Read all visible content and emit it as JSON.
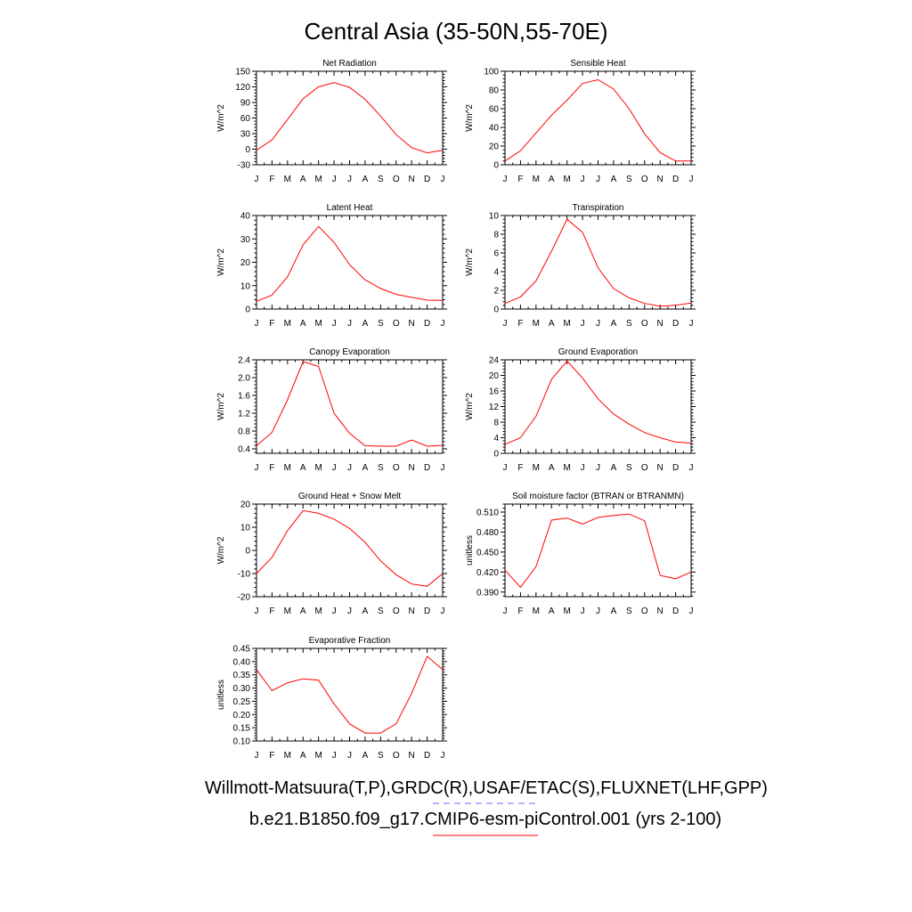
{
  "title": "Central Asia (35-50N,55-70E)",
  "months": [
    "J",
    "F",
    "M",
    "A",
    "M",
    "J",
    "J",
    "A",
    "S",
    "O",
    "N",
    "D",
    "J"
  ],
  "legend": {
    "obs": {
      "label": "Willmott-Matsuura(T,P),GRDC(R),USAF/ETAC(S),FLUXNET(LHF,GPP)",
      "color": "#6666ff",
      "style": "dashed"
    },
    "model": {
      "label": "b.e21.B1850.f09_g17.CMIP6-esm-piControl.001 (yrs 2-100)",
      "color": "#ff0000",
      "style": "solid"
    }
  },
  "chart_data": [
    {
      "type": "line",
      "title": "Net Radiation",
      "ylabel": "W/m^2",
      "ylim": [
        -30,
        150
      ],
      "yticks": [
        "-30",
        "0",
        "30",
        "60",
        "90",
        "120",
        "150"
      ],
      "series": [
        {
          "values": [
            -2,
            18,
            57,
            97,
            120,
            128,
            119,
            96,
            64,
            28,
            3,
            -7,
            -2
          ]
        }
      ]
    },
    {
      "type": "line",
      "title": "Sensible Heat",
      "ylabel": "W/m^2",
      "ylim": [
        0,
        100
      ],
      "yticks": [
        "0",
        "20",
        "40",
        "60",
        "80",
        "100"
      ],
      "series": [
        {
          "values": [
            4,
            15,
            34,
            53,
            69,
            87,
            91,
            81,
            60,
            33,
            13,
            4,
            4
          ]
        }
      ]
    },
    {
      "type": "line",
      "title": "Latent Heat",
      "ylabel": "W/m^2",
      "ylim": [
        0,
        40
      ],
      "yticks": [
        "0",
        "10",
        "20",
        "30",
        "40"
      ],
      "series": [
        {
          "values": [
            3.3,
            6,
            13.8,
            27.5,
            35.3,
            28.5,
            19,
            12.5,
            8.8,
            6.3,
            5,
            3.8,
            3.7
          ]
        }
      ]
    },
    {
      "type": "line",
      "title": "Transpiration",
      "ylabel": "W/m^2",
      "ylim": [
        0,
        10
      ],
      "yticks": [
        "0",
        "2",
        "4",
        "6",
        "8",
        "10"
      ],
      "series": [
        {
          "values": [
            0.6,
            1.3,
            3,
            6.2,
            9.6,
            8.2,
            4.4,
            2.2,
            1.2,
            0.6,
            0.3,
            0.4,
            0.65
          ]
        }
      ]
    },
    {
      "type": "line",
      "title": "Canopy Evaporation",
      "ylabel": "W/m^2",
      "ylim": [
        0.3,
        2.4
      ],
      "yticks": [
        "0.4",
        "0.8",
        "1.2",
        "1.6",
        "2.0",
        "2.4"
      ],
      "series": [
        {
          "values": [
            0.47,
            0.77,
            1.5,
            2.36,
            2.25,
            1.2,
            0.75,
            0.47,
            0.46,
            0.46,
            0.6,
            0.46,
            0.48
          ]
        }
      ]
    },
    {
      "type": "line",
      "title": "Ground Evaporation",
      "ylabel": "W/m^2",
      "ylim": [
        0,
        24
      ],
      "yticks": [
        "0",
        "4",
        "8",
        "12",
        "16",
        "20",
        "24"
      ],
      "series": [
        {
          "values": [
            2.3,
            4,
            9.5,
            19,
            23.7,
            19.3,
            14,
            10.1,
            7.5,
            5.3,
            4,
            2.9,
            2.6
          ]
        }
      ]
    },
    {
      "type": "line",
      "title": "Ground Heat + Snow Melt",
      "ylabel": "W/m^2",
      "ylim": [
        -20,
        20
      ],
      "yticks": [
        "-20",
        "-10",
        "0",
        "10",
        "20"
      ],
      "series": [
        {
          "values": [
            -10,
            -3,
            8.5,
            17.2,
            16,
            13.5,
            9.5,
            3.5,
            -4.5,
            -10.5,
            -14.5,
            -15.5,
            -10
          ]
        }
      ]
    },
    {
      "type": "line",
      "title": "Soil moisture factor (BTRAN or BTRANMN)",
      "ylabel": "unitless",
      "ylim": [
        0.383,
        0.522
      ],
      "yticks": [
        "0.390",
        "0.420",
        "0.450",
        "0.480",
        "0.510"
      ],
      "series": [
        {
          "values": [
            0.423,
            0.397,
            0.428,
            0.498,
            0.501,
            0.492,
            0.502,
            0.505,
            0.507,
            0.497,
            0.415,
            0.41,
            0.42
          ]
        }
      ]
    },
    {
      "type": "line",
      "title": "Evaporative Fraction",
      "ylabel": "unitless",
      "ylim": [
        0.1,
        0.45
      ],
      "yticks": [
        "0.10",
        "0.15",
        "0.20",
        "0.25",
        "0.30",
        "0.35",
        "0.40",
        "0.45"
      ],
      "series": [
        {
          "values": [
            0.37,
            0.29,
            0.32,
            0.335,
            0.33,
            0.24,
            0.165,
            0.13,
            0.13,
            0.165,
            0.28,
            0.42,
            0.37
          ]
        }
      ]
    }
  ]
}
